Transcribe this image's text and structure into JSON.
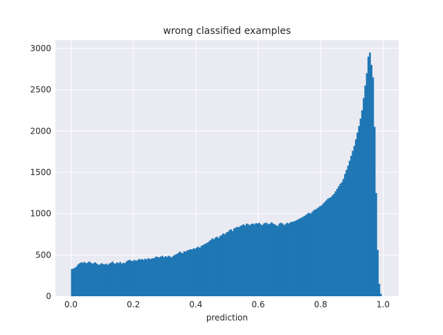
{
  "chart_data": {
    "type": "bar",
    "subtype": "histogram",
    "title": "wrong classified examples",
    "xlabel": "prediction",
    "ylabel": "",
    "xlim": [
      -0.05,
      1.05
    ],
    "ylim": [
      0,
      3100
    ],
    "xticks": [
      "0.0",
      "0.2",
      "0.4",
      "0.6",
      "0.8",
      "1.0"
    ],
    "yticks": [
      "0",
      "500",
      "1000",
      "1500",
      "2000",
      "2500",
      "3000"
    ],
    "grid": true,
    "bar_color": "#1f77b4",
    "background_color": "#eaeaf2",
    "bin_range": [
      0.0,
      1.0
    ],
    "num_bins": 200,
    "values": [
      330,
      335,
      345,
      360,
      385,
      400,
      410,
      405,
      415,
      400,
      405,
      420,
      410,
      395,
      400,
      410,
      395,
      380,
      385,
      400,
      390,
      385,
      395,
      380,
      395,
      405,
      420,
      400,
      395,
      410,
      400,
      415,
      395,
      405,
      400,
      420,
      435,
      440,
      430,
      425,
      440,
      430,
      435,
      450,
      445,
      450,
      440,
      455,
      445,
      460,
      450,
      455,
      460,
      465,
      480,
      475,
      470,
      480,
      490,
      470,
      485,
      475,
      490,
      480,
      470,
      490,
      500,
      510,
      520,
      540,
      530,
      520,
      545,
      540,
      555,
      560,
      570,
      565,
      580,
      575,
      590,
      600,
      585,
      610,
      620,
      630,
      640,
      650,
      665,
      680,
      700,
      690,
      710,
      720,
      705,
      730,
      740,
      760,
      750,
      770,
      780,
      800,
      810,
      790,
      820,
      830,
      840,
      835,
      850,
      860,
      870,
      855,
      880,
      870,
      860,
      875,
      880,
      870,
      885,
      880,
      890,
      870,
      860,
      880,
      890,
      885,
      870,
      880,
      895,
      880,
      870,
      860,
      850,
      880,
      890,
      880,
      860,
      875,
      890,
      880,
      895,
      900,
      905,
      910,
      920,
      930,
      940,
      950,
      960,
      970,
      985,
      1000,
      1010,
      1000,
      1020,
      1040,
      1050,
      1060,
      1075,
      1090,
      1100,
      1120,
      1140,
      1160,
      1180,
      1190,
      1200,
      1220,
      1240,
      1270,
      1300,
      1330,
      1360,
      1380,
      1420,
      1480,
      1530,
      1580,
      1640,
      1700,
      1760,
      1820,
      1900,
      1980,
      2060,
      2150,
      2250,
      2400,
      2550,
      2700,
      2900,
      2950,
      2800,
      2650,
      2050,
      1250,
      560,
      150,
      30,
      0
    ]
  }
}
